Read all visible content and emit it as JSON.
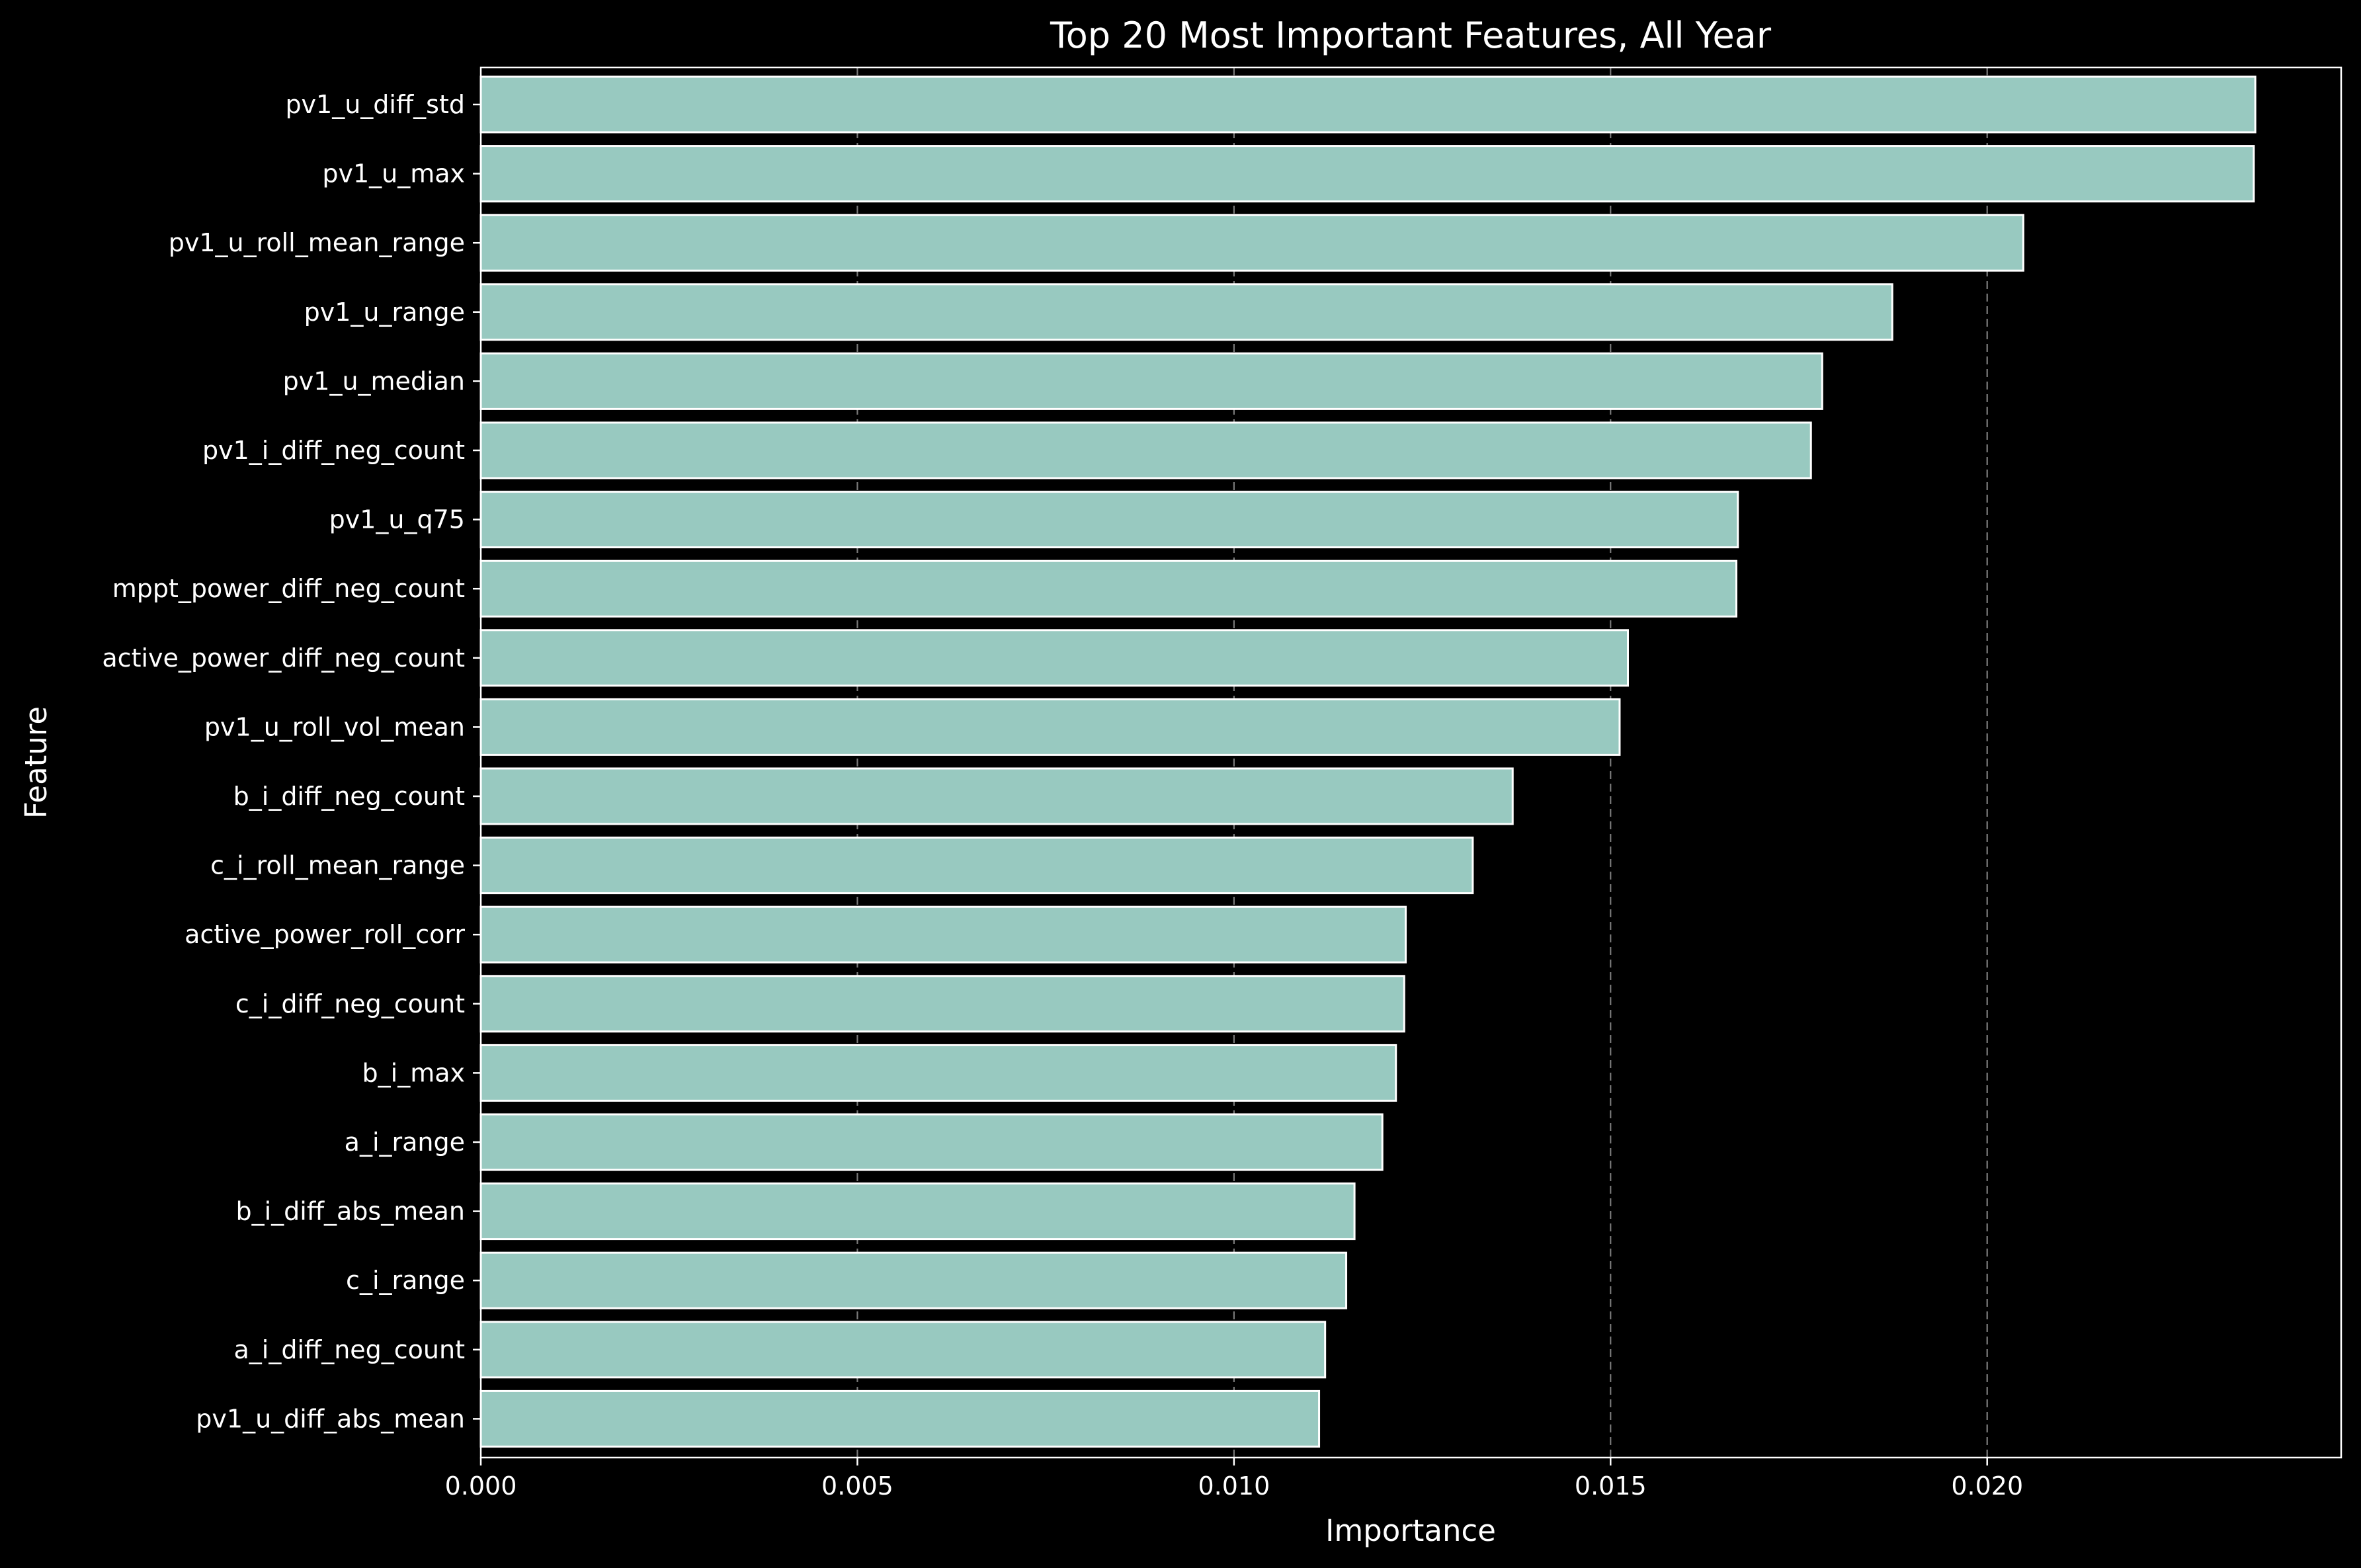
{
  "chart_data": {
    "type": "bar",
    "orientation": "horizontal",
    "title": "Top 20 Most Important Features, All Year",
    "xlabel": "Importance",
    "ylabel": "Feature",
    "xlim": [
      0,
      0.0247
    ],
    "xticks": [
      "0.000",
      "0.005",
      "0.010",
      "0.015",
      "0.020"
    ],
    "xtick_values": [
      0,
      0.005,
      0.01,
      0.015,
      0.02
    ],
    "grid": "x-dashed",
    "bar_color": "#98c9c0",
    "edge_color": "#ffffff",
    "background": "#000000",
    "categories": [
      "pv1_u_diff_std",
      "pv1_u_max",
      "pv1_u_roll_mean_range",
      "pv1_u_range",
      "pv1_u_median",
      "pv1_i_diff_neg_count",
      "pv1_u_q75",
      "mppt_power_diff_neg_count",
      "active_power_diff_neg_count",
      "pv1_u_roll_vol_mean",
      "b_i_diff_neg_count",
      "c_i_roll_mean_range",
      "active_power_roll_corr",
      "c_i_diff_neg_count",
      "b_i_max",
      "a_i_range",
      "b_i_diff_abs_mean",
      "c_i_range",
      "a_i_diff_neg_count",
      "pv1_u_diff_abs_mean"
    ],
    "values": [
      0.02356,
      0.02354,
      0.02048,
      0.01874,
      0.01781,
      0.01766,
      0.01669,
      0.01667,
      0.01523,
      0.01512,
      0.0137,
      0.01317,
      0.01228,
      0.01226,
      0.01215,
      0.01197,
      0.0116,
      0.01149,
      0.01121,
      0.01113
    ]
  }
}
